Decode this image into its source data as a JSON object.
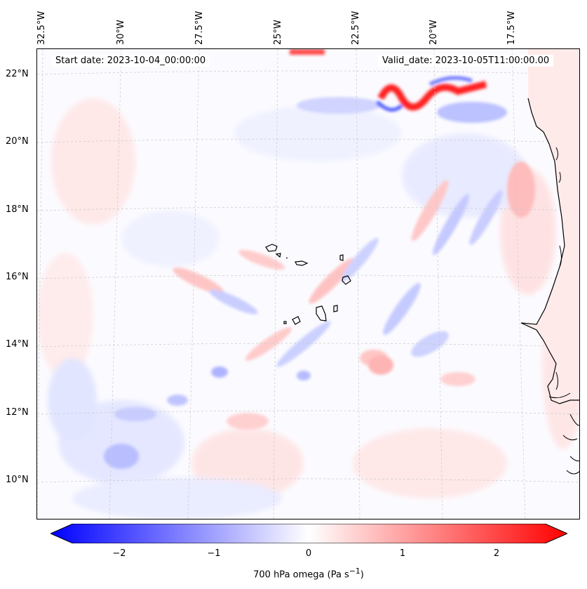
{
  "header": {
    "start_date": "Start date: 2023-10-04_00:00:00",
    "valid_date": "Valid_date: 2023-10-05T11:00:00.00"
  },
  "axes": {
    "lon_labels": [
      "32.5°W",
      "30°W",
      "27.5°W",
      "25°W",
      "22.5°W",
      "20°W",
      "17.5°W"
    ],
    "lat_labels": [
      "22°N",
      "20°N",
      "18°N",
      "16°N",
      "14°N",
      "12°N",
      "10°N"
    ]
  },
  "colorbar": {
    "ticks": [
      "−2",
      "−1",
      "0",
      "1",
      "2"
    ],
    "label": "700 hPa omega (Pa s",
    "label_sup": "−1",
    "label_end": ")",
    "range": [
      -2.6,
      2.6
    ],
    "colormap": "bwr",
    "low_color": "#0000ff",
    "mid_color": "#ffffff",
    "high_color": "#ff0000"
  },
  "map": {
    "extent_lon": [
      -32.8,
      -15.0
    ],
    "extent_lat": [
      8.9,
      22.8
    ],
    "gridlines": true,
    "coastline_color": "#000000",
    "features": [
      "Cape Verde islands",
      "West African coastline"
    ]
  }
}
